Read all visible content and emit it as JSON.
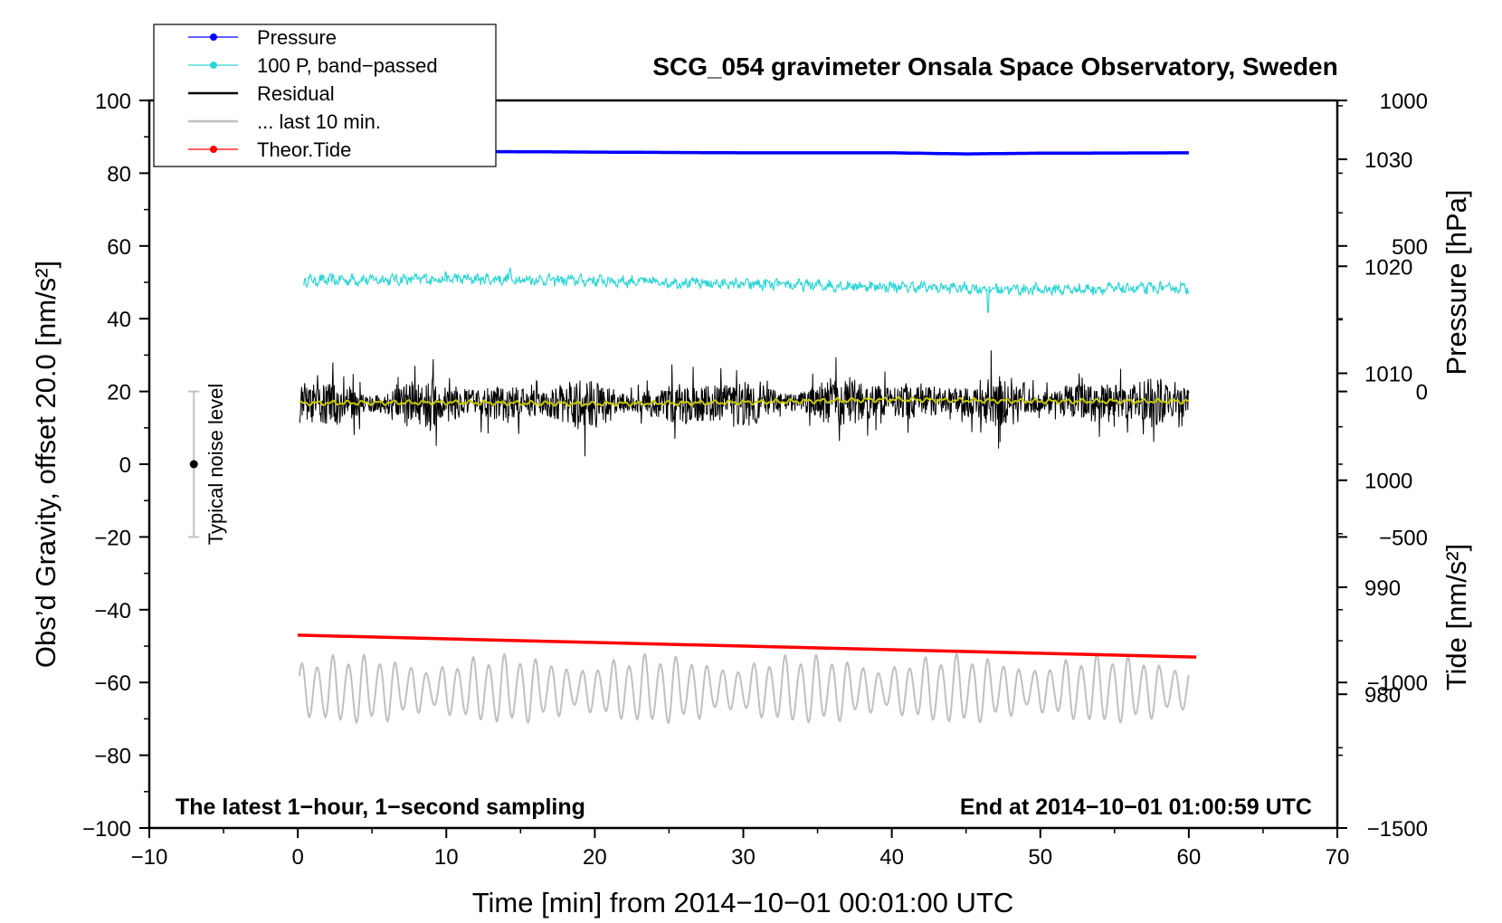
{
  "chart_data": {
    "type": "line",
    "title": "SCG_054 gravimeter Onsala Space Observatory, Sweden",
    "xlabel": "Time [min] from 2014−10−01 00:01:00 UTC",
    "ylabel_left": "Obs’d Gravity, offset 20.0 [nm/s²]",
    "ylabel_right_pressure": "Pressure [hPa]",
    "ylabel_right_tide": "Tide [nm/s²]",
    "xlim": [
      -10,
      70
    ],
    "ylim_left": [
      -100,
      100
    ],
    "pressure_axis_range": [
      967.5,
      1035.5
    ],
    "tide_axis_range": [
      -1500,
      1000
    ],
    "x_ticks": [
      "−10",
      "0",
      "10",
      "20",
      "30",
      "40",
      "50",
      "60",
      "70"
    ],
    "x_tick_values": [
      -10,
      0,
      10,
      20,
      30,
      40,
      50,
      60,
      70
    ],
    "y_left_ticks": [
      "−100",
      "−80",
      "−60",
      "−40",
      "−20",
      "0",
      "20",
      "40",
      "60",
      "80",
      "100"
    ],
    "y_left_tick_values": [
      -100,
      -80,
      -60,
      -40,
      -20,
      0,
      20,
      40,
      60,
      80,
      100
    ],
    "pressure_ticks": [
      "980",
      "990",
      "1000",
      "1010",
      "1020",
      "1030"
    ],
    "pressure_tick_values": [
      980,
      990,
      1000,
      1010,
      1020,
      1030
    ],
    "tide_ticks": [
      "−1500",
      "−1000",
      "−500",
      "0",
      "500",
      "1000"
    ],
    "tide_tick_values": [
      -1500,
      -1000,
      -500,
      0,
      500,
      1000
    ],
    "legend": [
      {
        "label": "Pressure",
        "color": "#0000ff",
        "marker": true
      },
      {
        "label": "100 P, band−passed",
        "color": "#30d5d5",
        "marker": true
      },
      {
        "label": "Residual",
        "color": "#000000",
        "marker": false
      },
      {
        "label": "... last 10 min.",
        "color": "#c0c0c0",
        "marker": false
      },
      {
        "label": "Theor.Tide",
        "color": "#ff0000",
        "marker": true
      }
    ],
    "series": [
      {
        "name": "Pressure",
        "color": "#0000ff",
        "x": [
          0,
          10,
          20,
          30,
          40,
          45,
          50,
          60
        ],
        "y": [
          86.0,
          86.0,
          85.8,
          85.6,
          85.6,
          85.3,
          85.5,
          85.6
        ]
      },
      {
        "name": "100 P, band−passed",
        "color": "#30d5d5",
        "x": [
          0,
          10,
          20,
          30,
          40,
          50,
          60
        ],
        "y": [
          50.5,
          51.0,
          50.5,
          49.5,
          48.8,
          48.0,
          48.5
        ],
        "noise": 1.3
      },
      {
        "name": "Residual",
        "color": "#000000",
        "x": [
          0,
          10,
          20,
          30,
          40,
          50,
          60
        ],
        "y": [
          16.5,
          16.8,
          16.5,
          16.8,
          17.5,
          17.2,
          17.2
        ],
        "noise": 7.5
      },
      {
        "name": "Residual (smoothed)",
        "color": "#c8c800",
        "x": [
          0,
          10,
          20,
          30,
          40,
          50,
          60
        ],
        "y": [
          16.8,
          17.0,
          16.6,
          17.0,
          17.8,
          17.3,
          17.3
        ]
      },
      {
        "name": "... last 10 min.",
        "color": "#c0c0c0",
        "x": [
          0,
          60
        ],
        "y": [
          -62,
          -62
        ],
        "amplitude": 9
      },
      {
        "name": "Theor.Tide",
        "color": "#ff0000",
        "x": [
          0,
          20,
          40,
          60.5
        ],
        "y": [
          -47,
          -49,
          -51,
          -53
        ]
      }
    ],
    "noise_bar": {
      "label": "Typical noise level",
      "x": -7,
      "center": 0,
      "low": -20,
      "high": 20
    },
    "annotations": {
      "left": "The latest 1−hour, 1−second sampling",
      "right": "End at 2014−10−01 01:00:59 UTC"
    }
  }
}
